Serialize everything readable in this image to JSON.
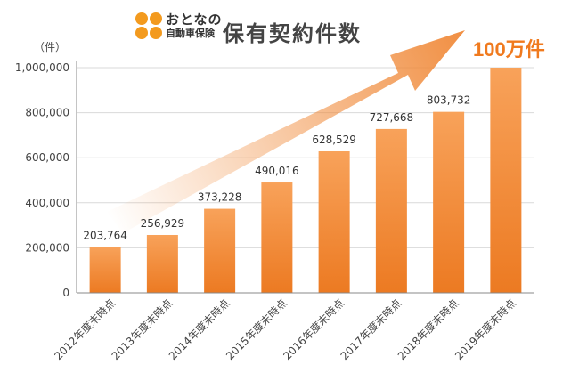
{
  "logo": {
    "line1": "おとなの",
    "line2": "自動車保険",
    "dot_colors": [
      "#f39a1e",
      "#f39a1e",
      "#f39a1e",
      "#f39a1e"
    ]
  },
  "title": "保有契約件数",
  "highlight": "100万件",
  "colors": {
    "bar_top": "#f8a25a",
    "bar_bottom": "#ec7a22",
    "arrow": "#f08a3a",
    "highlight": "#f07a1e",
    "axis": "#888888",
    "grid": "#d9d9d9"
  },
  "chart_data": {
    "type": "bar",
    "title": "保有契約件数",
    "ylabel": "（件）",
    "xlabel": "",
    "ylim": [
      0,
      1000000
    ],
    "yticks": [
      0,
      200000,
      400000,
      600000,
      800000,
      1000000
    ],
    "ytick_labels": [
      "0",
      "200,000",
      "400,000",
      "600,000",
      "800,000",
      "1,000,000"
    ],
    "grid": true,
    "categories": [
      "2012年度末時点",
      "2013年度末時点",
      "2014年度末時点",
      "2015年度末時点",
      "2016年度末時点",
      "2017年度末時点",
      "2018年度末時点",
      "2019年度末時点"
    ],
    "values": [
      203764,
      256929,
      373228,
      490016,
      628529,
      727668,
      803732,
      1000000
    ],
    "data_labels": [
      "203,764",
      "256,929",
      "373,228",
      "490,016",
      "628,529",
      "727,668",
      "803,732",
      ""
    ],
    "annotation": "100万件"
  }
}
